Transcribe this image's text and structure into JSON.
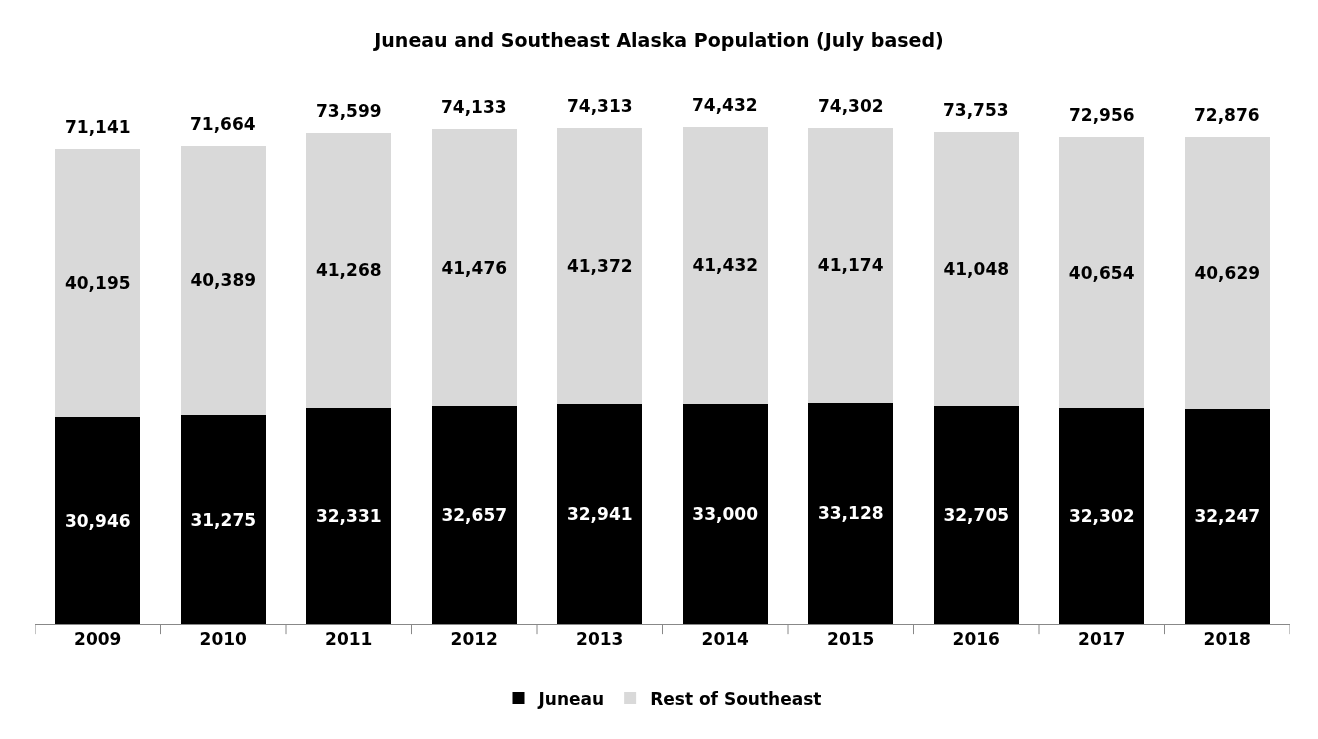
{
  "chart_data": {
    "type": "bar",
    "title": "Juneau and Southeast Alaska Population (July based)",
    "categories": [
      "2009",
      "2010",
      "2011",
      "2012",
      "2013",
      "2014",
      "2015",
      "2016",
      "2017",
      "2018"
    ],
    "stacked": true,
    "legend": "bottom",
    "series": [
      {
        "name": "Juneau",
        "color": "#000000",
        "values": [
          30946,
          31275,
          32331,
          32657,
          32941,
          33000,
          33128,
          32705,
          32302,
          32247
        ],
        "value_labels": [
          "30,946",
          "31,275",
          "32,331",
          "32,657",
          "32,941",
          "33,000",
          "33,128",
          "32,705",
          "32,302",
          "32,247"
        ]
      },
      {
        "name": "Rest of Southeast",
        "color": "#d9d9d9",
        "values": [
          40195,
          40389,
          41268,
          41476,
          41372,
          41432,
          41174,
          41048,
          40654,
          40629
        ],
        "value_labels": [
          "40,195",
          "40,389",
          "41,268",
          "41,476",
          "41,372",
          "41,432",
          "41,174",
          "41,048",
          "40,654",
          "40,629"
        ]
      }
    ],
    "totals": [
      "71,141",
      "71,664",
      "73,599",
      "74,133",
      "74,313",
      "74,432",
      "74,302",
      "73,753",
      "72,956",
      "72,876"
    ]
  }
}
